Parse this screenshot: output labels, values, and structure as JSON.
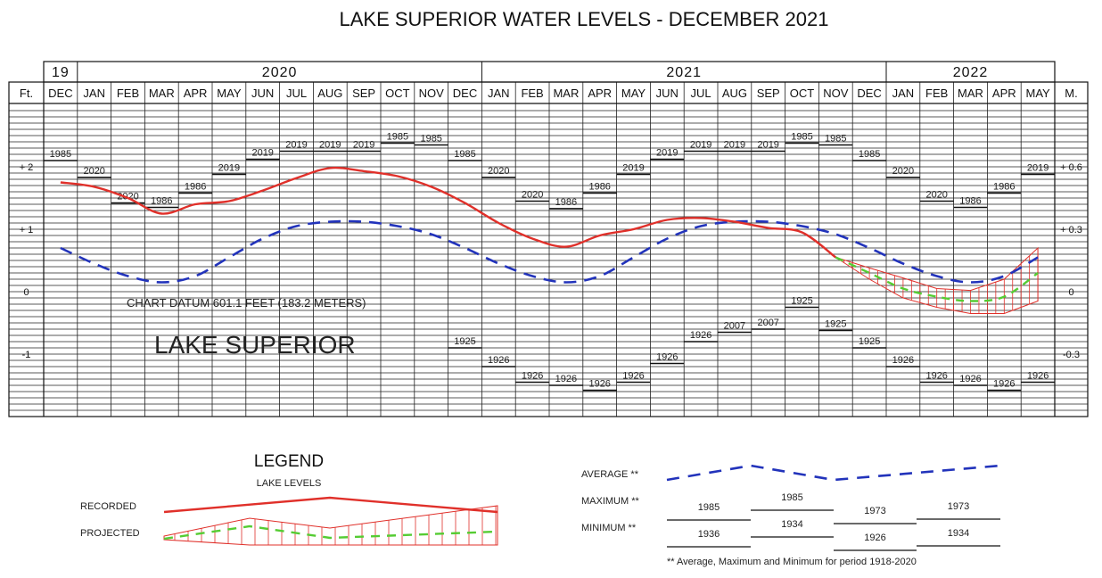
{
  "chart_data": {
    "type": "line",
    "title": "LAKE SUPERIOR WATER LEVELS - DECEMBER 2021",
    "years": [
      {
        "label": "19",
        "start": 0,
        "end": 1
      },
      {
        "label": "2020",
        "start": 1,
        "end": 13
      },
      {
        "label": "2021",
        "start": 13,
        "end": 25
      },
      {
        "label": "2022",
        "start": 25,
        "end": 30
      }
    ],
    "months": [
      "DEC",
      "JAN",
      "FEB",
      "MAR",
      "APR",
      "MAY",
      "JUN",
      "JUL",
      "AUG",
      "SEP",
      "OCT",
      "NOV",
      "DEC",
      "JAN",
      "FEB",
      "MAR",
      "APR",
      "MAY",
      "JUN",
      "JUL",
      "AUG",
      "SEP",
      "OCT",
      "NOV",
      "DEC",
      "JAN",
      "FEB",
      "MAR",
      "APR",
      "MAY"
    ],
    "left_unit": "Ft.",
    "right_unit": "M.",
    "ylim": [
      -2.0,
      3.0
    ],
    "left_ticks": [
      {
        "value": 2,
        "label": "+ 2"
      },
      {
        "value": 1,
        "label": "+ 1"
      },
      {
        "value": 0,
        "label": "0"
      },
      {
        "value": -1,
        "label": "-1"
      }
    ],
    "right_ticks": [
      {
        "value": 2,
        "label": "+ 0.6"
      },
      {
        "value": 1,
        "label": "+ 0.3"
      },
      {
        "value": 0,
        "label": "0"
      },
      {
        "value": -1,
        "label": "-0.3"
      }
    ],
    "series": [
      {
        "name": "RECORDED",
        "values": [
          1.75,
          1.68,
          1.5,
          1.25,
          1.4,
          1.45,
          1.62,
          1.82,
          1.98,
          1.93,
          1.85,
          1.68,
          1.42,
          1.1,
          0.85,
          0.72,
          0.9,
          1.0,
          1.15,
          1.18,
          1.12,
          1.02,
          0.95,
          0.55,
          null,
          null,
          null,
          null,
          null,
          null
        ]
      },
      {
        "name": "PROJECTED",
        "values": [
          null,
          null,
          null,
          null,
          null,
          null,
          null,
          null,
          null,
          null,
          null,
          null,
          null,
          null,
          null,
          null,
          null,
          null,
          null,
          null,
          null,
          null,
          null,
          0.55,
          0.3,
          0.05,
          -0.08,
          -0.15,
          -0.08,
          0.3
        ]
      },
      {
        "name": "PROJECTED_HIGH",
        "values": [
          null,
          null,
          null,
          null,
          null,
          null,
          null,
          null,
          null,
          null,
          null,
          null,
          null,
          null,
          null,
          null,
          null,
          null,
          null,
          null,
          null,
          null,
          null,
          0.55,
          0.38,
          0.22,
          0.05,
          0.02,
          0.2,
          0.7
        ]
      },
      {
        "name": "PROJECTED_LOW",
        "values": [
          null,
          null,
          null,
          null,
          null,
          null,
          null,
          null,
          null,
          null,
          null,
          null,
          null,
          null,
          null,
          null,
          null,
          null,
          null,
          null,
          null,
          null,
          null,
          0.55,
          0.2,
          -0.1,
          -0.25,
          -0.35,
          -0.35,
          -0.15
        ]
      },
      {
        "name": "AVERAGE",
        "values": [
          0.7,
          0.45,
          0.25,
          0.15,
          0.25,
          0.55,
          0.85,
          1.05,
          1.12,
          1.12,
          1.05,
          0.92,
          0.7,
          0.45,
          0.25,
          0.15,
          0.25,
          0.55,
          0.85,
          1.05,
          1.12,
          1.12,
          1.05,
          0.92,
          0.7,
          0.45,
          0.25,
          0.15,
          0.25,
          0.55
        ]
      }
    ],
    "maximum_records": [
      {
        "year": "1985",
        "value": 2.1
      },
      {
        "year": "2020",
        "value": 1.83
      },
      {
        "year": "2020",
        "value": 1.42
      },
      {
        "year": "1986",
        "value": 1.35
      },
      {
        "year": "1986",
        "value": 1.58
      },
      {
        "year": "2019",
        "value": 1.88
      },
      {
        "year": "2019",
        "value": 2.12
      },
      {
        "year": "2019",
        "value": 2.25
      },
      {
        "year": "2019",
        "value": 2.25
      },
      {
        "year": "2019",
        "value": 2.25
      },
      {
        "year": "1985",
        "value": 2.38
      },
      {
        "year": "1985",
        "value": 2.35
      },
      {
        "year": "1985",
        "value": 2.1
      },
      {
        "year": "2020",
        "value": 1.83
      },
      {
        "year": "2020",
        "value": 1.45
      },
      {
        "year": "1986",
        "value": 1.33
      },
      {
        "year": "1986",
        "value": 1.58
      },
      {
        "year": "2019",
        "value": 1.88
      },
      {
        "year": "2019",
        "value": 2.12
      },
      {
        "year": "2019",
        "value": 2.25
      },
      {
        "year": "2019",
        "value": 2.25
      },
      {
        "year": "2019",
        "value": 2.25
      },
      {
        "year": "1985",
        "value": 2.38
      },
      {
        "year": "1985",
        "value": 2.35
      },
      {
        "year": "1985",
        "value": 2.1
      },
      {
        "year": "2020",
        "value": 1.83
      },
      {
        "year": "2020",
        "value": 1.45
      },
      {
        "year": "1986",
        "value": 1.35
      },
      {
        "year": "1986",
        "value": 1.58
      },
      {
        "year": "2019",
        "value": 1.88
      }
    ],
    "minimum_records": [
      {
        "col": 12,
        "year": "1925",
        "value": -0.9
      },
      {
        "col": 13,
        "year": "1926",
        "value": -1.2
      },
      {
        "col": 14,
        "year": "1926",
        "value": -1.45
      },
      {
        "col": 15,
        "year": "1926",
        "value": -1.5
      },
      {
        "col": 16,
        "year": "1926",
        "value": -1.58
      },
      {
        "col": 17,
        "year": "1926",
        "value": -1.45
      },
      {
        "col": 18,
        "year": "1926",
        "value": -1.15
      },
      {
        "col": 19,
        "year": "1926",
        "value": -0.8
      },
      {
        "col": 20,
        "year": "2007",
        "value": -0.65
      },
      {
        "col": 21,
        "year": "2007",
        "value": -0.6
      },
      {
        "col": 22,
        "year": "1925",
        "value": -0.25
      },
      {
        "col": 23,
        "year": "1925",
        "value": -0.62
      },
      {
        "col": 24,
        "year": "1925",
        "value": -0.9
      },
      {
        "col": 25,
        "year": "1926",
        "value": -1.2
      },
      {
        "col": 26,
        "year": "1926",
        "value": -1.45
      },
      {
        "col": 27,
        "year": "1926",
        "value": -1.5
      },
      {
        "col": 28,
        "year": "1926",
        "value": -1.58
      },
      {
        "col": 29,
        "year": "1926",
        "value": -1.45
      }
    ],
    "annotations": {
      "datum": "CHART DATUM 601.1 FEET (183.2 METERS)",
      "lake": "LAKE SUPERIOR"
    },
    "legend": {
      "title": "LEGEND",
      "subtitle": "LAKE LEVELS",
      "recorded_label": "RECORDED",
      "projected_label": "PROJECTED",
      "average_label": "AVERAGE **",
      "maximum_label": "MAXIMUM **",
      "minimum_label": "MINIMUM **",
      "maximum_years": [
        "1985",
        "1985",
        "1973",
        "1973"
      ],
      "minimum_years": [
        "1936",
        "1934",
        "1926",
        "1934"
      ],
      "footnote": "** Average, Maximum and Minimum for period 1918-2020"
    },
    "colors": {
      "recorded": "#e0302a",
      "projected": "#55cc33",
      "average": "#2233bb",
      "hatch": "#e0302a"
    }
  }
}
